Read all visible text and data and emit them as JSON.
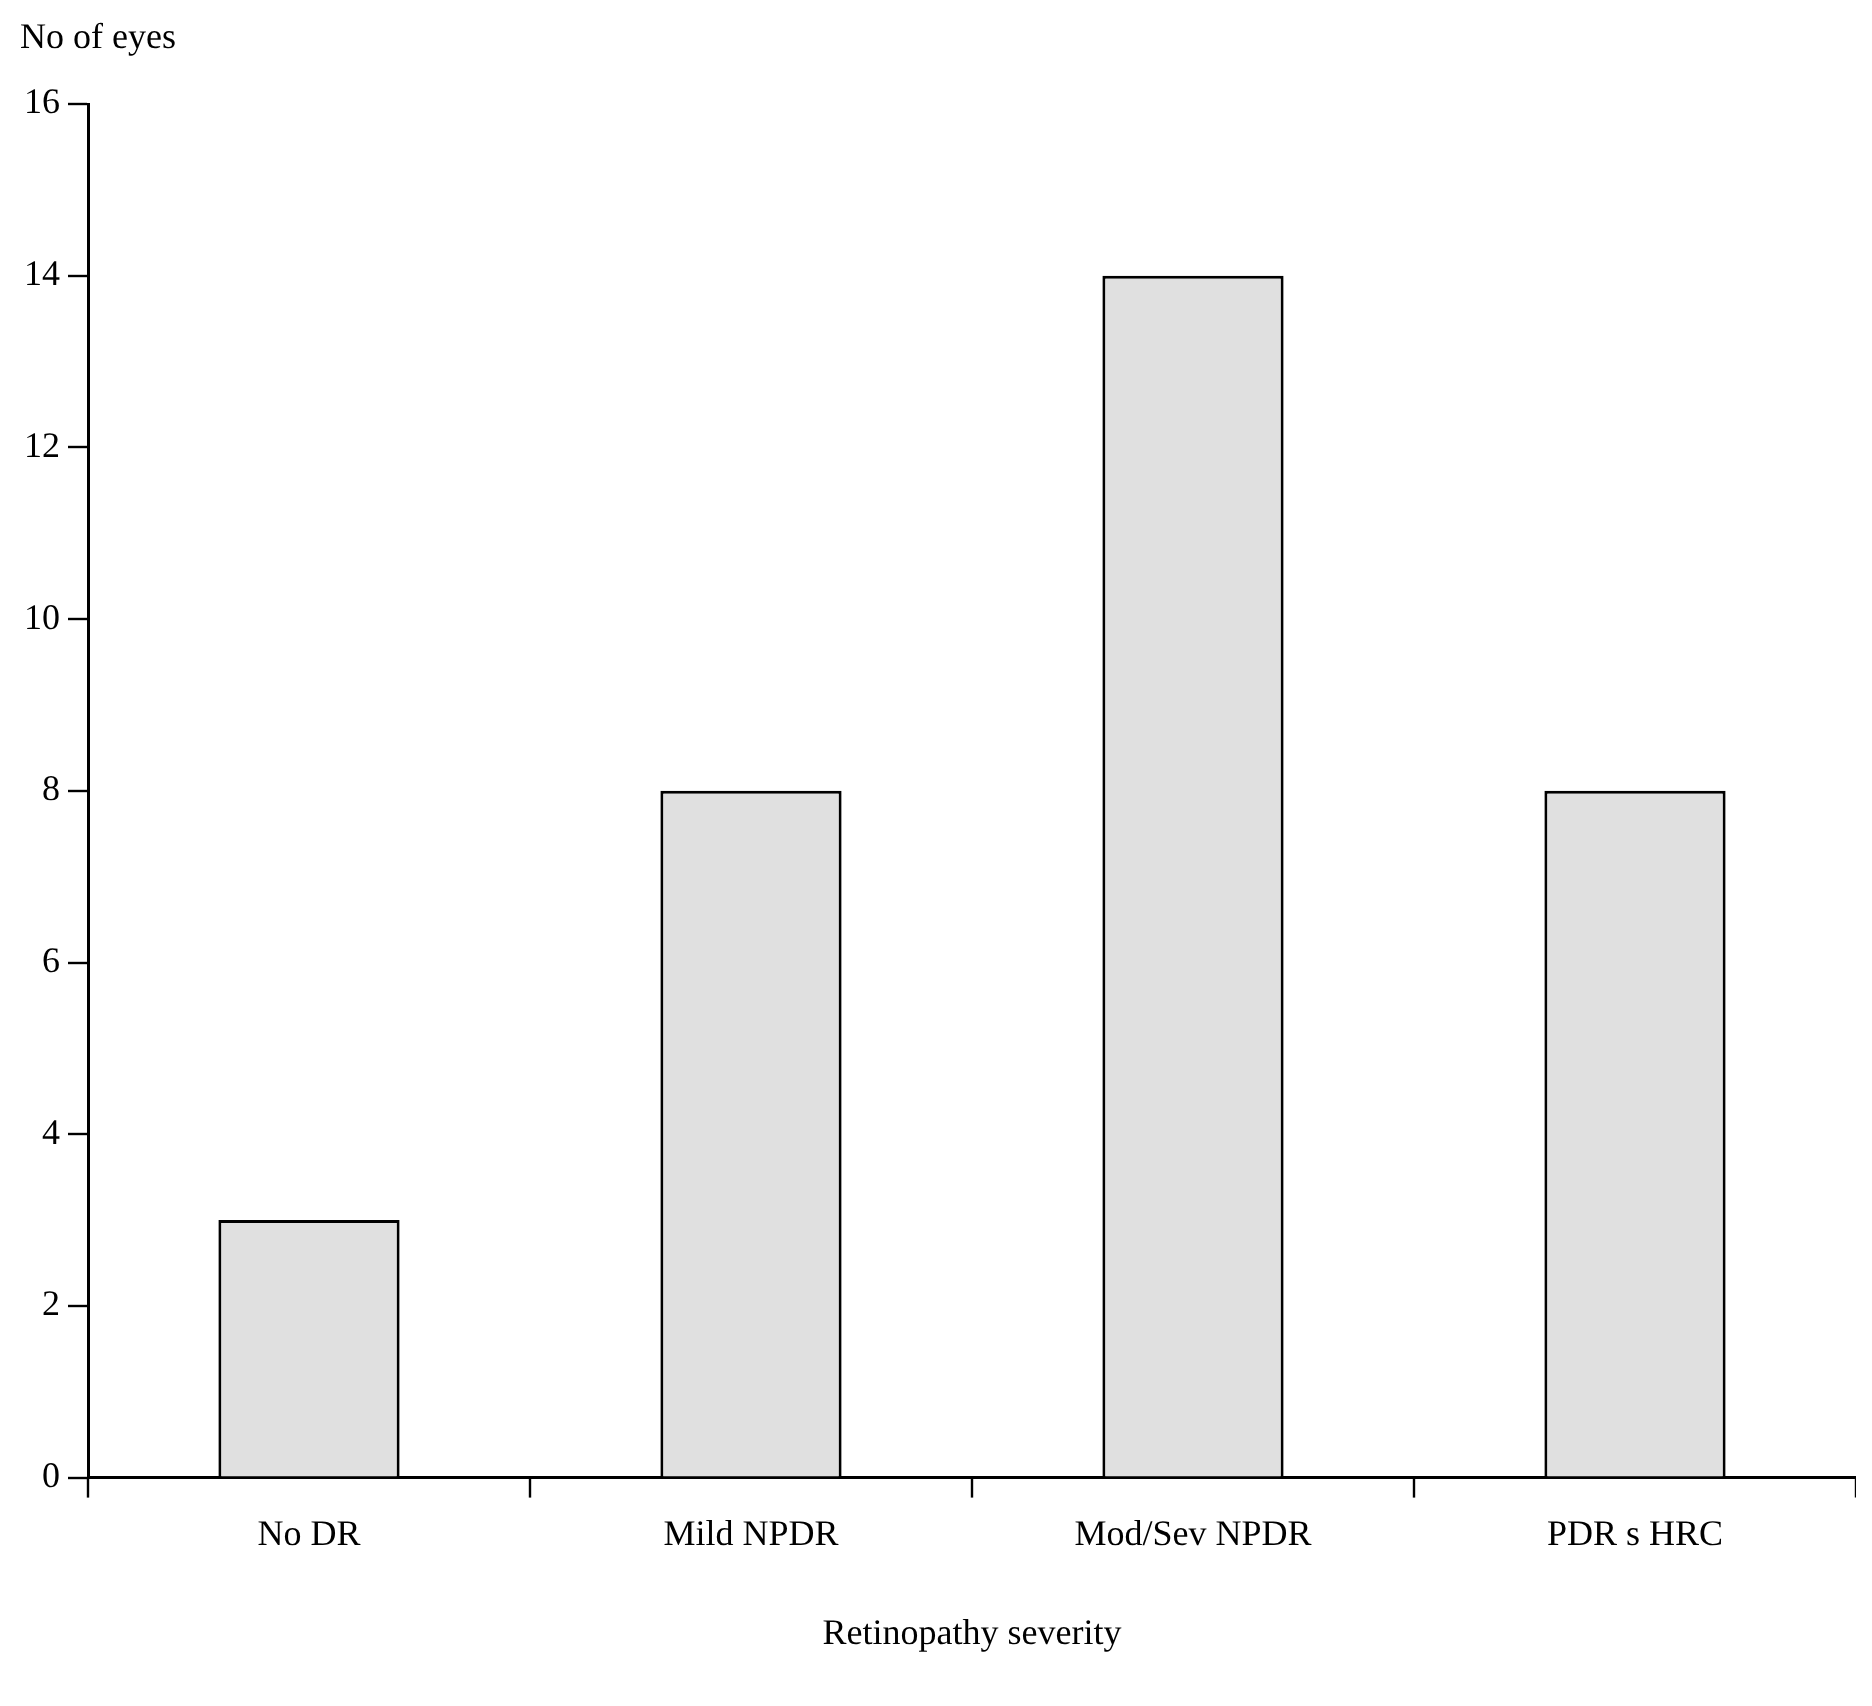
{
  "chart_data": {
    "type": "bar",
    "xlabel": "Retinopathy severity",
    "ylabel": "No of eyes",
    "categories": [
      "No DR",
      "Mild NPDR",
      "Mod/Sev NPDR",
      "PDR s HRC"
    ],
    "values": [
      3,
      8,
      14,
      8
    ],
    "color": "#e0e0e0",
    "ylim": [
      0,
      16
    ],
    "yticks": [
      0,
      2,
      4,
      6,
      8,
      10,
      12,
      14,
      16
    ],
    "grid": false,
    "legend": false
  }
}
